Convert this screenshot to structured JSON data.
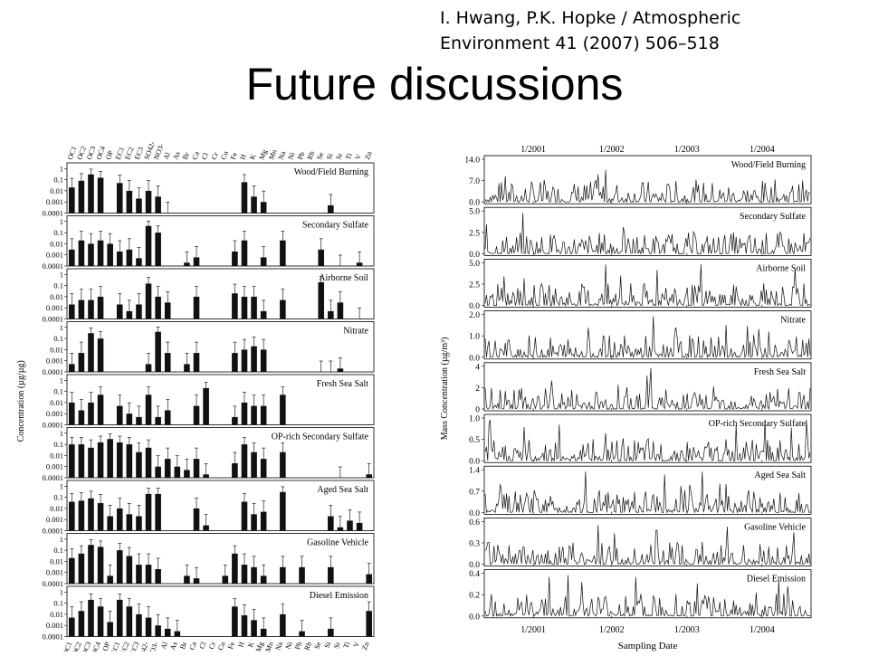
{
  "citation": {
    "line1": "I. Hwang, P.K. Hopke / Atmospheric",
    "line2": "Environment 41 (2007) 506–518"
  },
  "title": "Future discussions",
  "chart_data": [
    {
      "type": "bar",
      "y_label": "Concentration (µg/µg)",
      "y_scale": "log",
      "y_ticks": [
        "1",
        "0.1",
        "0.01",
        "0.001",
        "0.0001"
      ],
      "categories": [
        "OC1",
        "OC2",
        "OC3",
        "OC4",
        "OP",
        "EC1",
        "EC2",
        "EC3",
        "SO42-",
        "NO3-",
        "Al",
        "As",
        "Br",
        "Ca",
        "Cl",
        "Cr",
        "Cu",
        "Fe",
        "H",
        "K",
        "Mg",
        "Mn",
        "Na",
        "Ni",
        "Pb",
        "Rb",
        "Se",
        "Si",
        "Sr",
        "Ti",
        "V",
        "Zn"
      ],
      "series": [
        {
          "name": "Wood/Field Burning",
          "values": [
            0.02,
            0.08,
            0.3,
            0.15,
            0,
            0.05,
            0.01,
            0.002,
            0.01,
            0.003,
            0.0001,
            0,
            0,
            0,
            0,
            0,
            0,
            0,
            0.06,
            0.003,
            0.001,
            0,
            0,
            0,
            0,
            0,
            0,
            0.0005,
            0,
            0,
            0,
            0
          ]
        },
        {
          "name": "Secondary Sulfate",
          "values": [
            0.003,
            0.02,
            0.01,
            0.02,
            0.01,
            0.002,
            0.003,
            0.0005,
            0.4,
            0.1,
            0,
            0,
            0.0002,
            0.0006,
            0,
            0,
            0,
            0.002,
            0.02,
            0,
            0.0006,
            0,
            0.02,
            0,
            0,
            0,
            0.003,
            0,
            0.0001,
            0,
            0.0002,
            0
          ]
        },
        {
          "name": "Airborne Soil",
          "values": [
            0.002,
            0.005,
            0.005,
            0.01,
            0,
            0.002,
            0.0005,
            0.002,
            0.15,
            0.01,
            0.003,
            0,
            0,
            0.01,
            0,
            0,
            0,
            0.02,
            0.01,
            0.01,
            0.0005,
            0,
            0.005,
            0,
            0,
            0,
            0.2,
            0.0005,
            0.003,
            0,
            0.0001,
            0
          ]
        },
        {
          "name": "Nitrate",
          "values": [
            0.0005,
            0.005,
            0.3,
            0.1,
            0,
            0,
            0,
            0,
            0.0005,
            0.4,
            0.005,
            0,
            0.0005,
            0.005,
            0,
            0,
            0,
            0.005,
            0.01,
            0.02,
            0.01,
            0,
            0,
            0,
            0,
            0,
            0.0001,
            0.0001,
            0.0002,
            0,
            0,
            0
          ]
        },
        {
          "name": "Fresh Sea Salt",
          "values": [
            0.01,
            0.002,
            0.01,
            0.05,
            0,
            0.005,
            0.001,
            0.0005,
            0.05,
            0.0005,
            0.002,
            0,
            0,
            0.005,
            0.2,
            0,
            0,
            0.0005,
            0.01,
            0.005,
            0.005,
            0,
            0.05,
            0,
            0,
            0,
            0,
            0,
            0,
            0,
            0,
            0
          ]
        },
        {
          "name": "OP-rich Secondary Sulfate",
          "values": [
            0.1,
            0.1,
            0.05,
            0.15,
            0.3,
            0.15,
            0.1,
            0.02,
            0.05,
            0.001,
            0.005,
            0.001,
            0.0005,
            0.005,
            0.0002,
            0,
            0,
            0.002,
            0.1,
            0.02,
            0.005,
            0,
            0.02,
            0,
            0,
            0,
            0,
            0,
            0.0001,
            0,
            0,
            0.0002
          ]
        },
        {
          "name": "Aged Sea Salt",
          "values": [
            0.04,
            0.05,
            0.08,
            0.03,
            0.002,
            0.01,
            0.003,
            0.002,
            0.2,
            0.2,
            0,
            0,
            0,
            0.01,
            0.0003,
            0,
            0,
            0,
            0.04,
            0.003,
            0.005,
            0,
            0.3,
            0,
            0,
            0,
            0,
            0.002,
            0.0002,
            0.0008,
            0.0005,
            0
          ]
        },
        {
          "name": "Gasoline Vehicle",
          "values": [
            0.02,
            0.05,
            0.3,
            0.2,
            0.0005,
            0.1,
            0.03,
            0.005,
            0.005,
            0.002,
            0,
            0,
            0.0005,
            0.0003,
            0,
            0,
            0.0005,
            0.05,
            0.005,
            0.003,
            0.0005,
            0,
            0.003,
            0,
            0.003,
            0,
            0,
            0.003,
            0,
            0,
            0,
            0.0007
          ]
        },
        {
          "name": "Diesel Emission",
          "values": [
            0.005,
            0.02,
            0.2,
            0.05,
            0.002,
            0.2,
            0.05,
            0.01,
            0.005,
            0.001,
            0.0005,
            0.0003,
            0,
            0,
            0,
            0,
            0,
            0.05,
            0.008,
            0.003,
            0.0005,
            0,
            0.01,
            0,
            0.0003,
            0,
            0,
            0.0005,
            0,
            0,
            0,
            0.02
          ]
        }
      ]
    },
    {
      "type": "line",
      "x_label": "Sampling Date",
      "y_label": "Mass Concentration (µg/m³)",
      "x_ticks": [
        "1/2001",
        "1/2002",
        "1/2003",
        "1/2004"
      ],
      "series": [
        {
          "name": "Wood/Field Burning",
          "ylim": [
            0,
            14
          ],
          "y_ticks": [
            "14.0",
            "7.0",
            "0.0"
          ]
        },
        {
          "name": "Secondary Sulfate",
          "ylim": [
            0,
            5
          ],
          "y_ticks": [
            "5.0",
            "2.5",
            "0.0"
          ]
        },
        {
          "name": "Airborne Soil",
          "ylim": [
            0,
            5
          ],
          "y_ticks": [
            "5.0",
            "2.5",
            "0.0"
          ]
        },
        {
          "name": "Nitrate",
          "ylim": [
            0,
            2
          ],
          "y_ticks": [
            "2.0",
            "1.0",
            "0.0"
          ]
        },
        {
          "name": "Fresh Sea Salt",
          "ylim": [
            0,
            4
          ],
          "y_ticks": [
            "4",
            "2",
            "0"
          ]
        },
        {
          "name": "OP-rich Secondary Sulfate",
          "ylim": [
            0,
            1
          ],
          "y_ticks": [
            "1.0",
            "0.5",
            "0.0"
          ]
        },
        {
          "name": "Aged Sea Salt",
          "ylim": [
            0,
            1.4
          ],
          "y_ticks": [
            "1.4",
            "0.7",
            "0.0"
          ]
        },
        {
          "name": "Gasoline Vehicle",
          "ylim": [
            0,
            0.6
          ],
          "y_ticks": [
            "0.6",
            "0.3",
            "0.0"
          ]
        },
        {
          "name": "Diesel Emission",
          "ylim": [
            0,
            0.4
          ],
          "y_ticks": [
            "0.4",
            "0.2",
            "0.0"
          ]
        }
      ]
    }
  ]
}
